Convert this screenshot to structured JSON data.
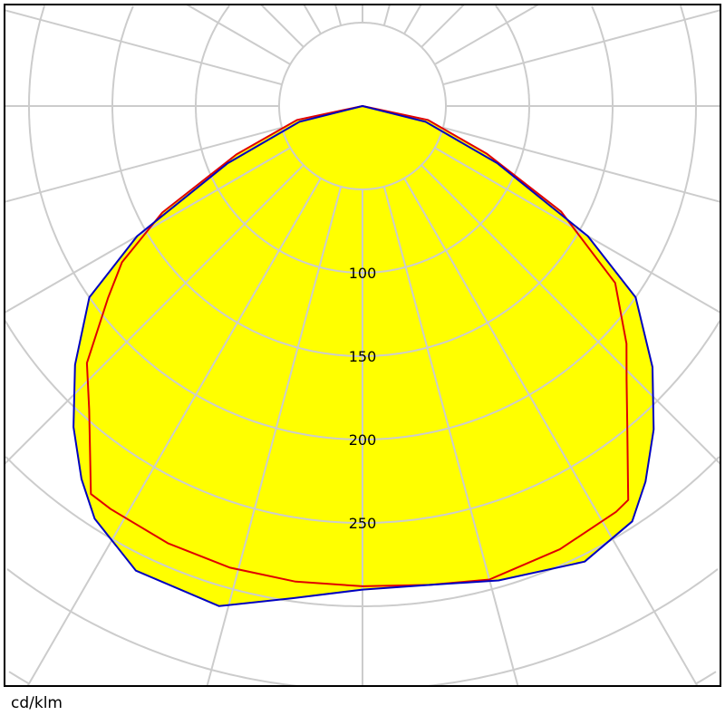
{
  "chart_data": {
    "type": "polar",
    "unit_label": "cd/klm",
    "radial_tick_labels": [
      "100",
      "150",
      "200",
      "250"
    ],
    "radial_ticks": [
      50,
      100,
      150,
      200,
      250,
      300,
      350,
      400,
      450
    ],
    "angle_step_deg": 15,
    "grid": true,
    "fill_color": "#ffff00",
    "grid_color": "#cccccc",
    "series": [
      {
        "color": "#e00000",
        "points": [
          [
            -90,
            0
          ],
          [
            -78,
            40
          ],
          [
            -69,
            81
          ],
          [
            -62,
            136
          ],
          [
            -57,
            172
          ],
          [
            -53,
            191
          ],
          [
            -47,
            226
          ],
          [
            -42,
            245
          ],
          [
            -35,
            284
          ],
          [
            -32,
            285
          ],
          [
            -24,
            287
          ],
          [
            -16,
            288
          ],
          [
            -8,
            288
          ],
          [
            0,
            288
          ],
          [
            8,
            290
          ],
          [
            15,
            294
          ],
          [
            24,
            291
          ],
          [
            32,
            287
          ],
          [
            34,
            285
          ],
          [
            40,
            247
          ],
          [
            44,
            228
          ],
          [
            48,
            213
          ],
          [
            55,
            185
          ],
          [
            62,
            135
          ],
          [
            69,
            80
          ],
          [
            78,
            40
          ],
          [
            90,
            0
          ]
        ]
      },
      {
        "color": "#0000c0",
        "points": [
          [
            -90,
            0
          ],
          [
            -76,
            39
          ],
          [
            -67,
            88
          ],
          [
            -60,
            156
          ],
          [
            -55,
            200
          ],
          [
            -48,
            232
          ],
          [
            -42,
            259
          ],
          [
            -37,
            280
          ],
          [
            -33,
            295
          ],
          [
            -26,
            310
          ],
          [
            -16,
            312
          ],
          [
            -8,
            298
          ],
          [
            0,
            290
          ],
          [
            8,
            290
          ],
          [
            16,
            296
          ],
          [
            26,
            304
          ],
          [
            33,
            297
          ],
          [
            37,
            282
          ],
          [
            42,
            261
          ],
          [
            48,
            234
          ],
          [
            55,
            200
          ],
          [
            60,
            156
          ],
          [
            67,
            88
          ],
          [
            76,
            39
          ],
          [
            90,
            0
          ]
        ]
      }
    ]
  }
}
